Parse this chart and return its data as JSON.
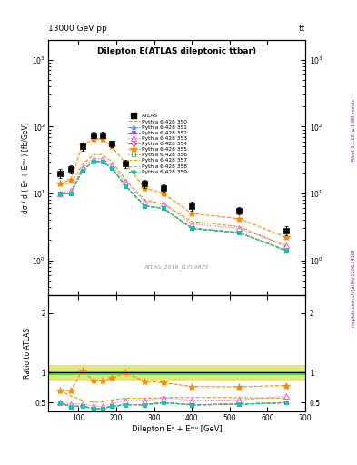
{
  "title_top": "13000 GeV pp",
  "title_top_right": "tt̅",
  "plot_title": "Dilepton E(ATLAS dileptonic ttbar)",
  "right_label": "mcplots.cern.ch [arXiv:1306.3436]",
  "rivet_label": "Rivet 3.1.10, ≥ 1.9M events",
  "watermark": "ATLAS_2019_I1759875",
  "xlabel": "Dilepton Eᵉ + Eᵐᵘ [GeV]",
  "ylabel": "dσ / d ( Eᵉ + Eᵐᵘ ) [fb/GeV]",
  "ylabel_ratio": "Ratio to ATLAS",
  "x_centers": [
    50,
    80,
    110,
    140,
    163,
    188,
    225,
    275,
    325,
    400,
    525,
    650
  ],
  "atlas_data": [
    20,
    23,
    50,
    75,
    75,
    55,
    28,
    14,
    12,
    6.5,
    5.5,
    2.8
  ],
  "atlas_errors": [
    3,
    3,
    6,
    8,
    8,
    6,
    4,
    2,
    1.5,
    1.0,
    0.7,
    0.4
  ],
  "series": [
    {
      "label": "Pythia 6.428 350",
      "color": "#ccaa00",
      "linestyle": "--",
      "marker": null,
      "markersize": 0,
      "values": [
        14,
        14,
        27,
        38,
        38,
        30,
        16,
        8,
        7,
        3.8,
        3.2,
        1.6
      ]
    },
    {
      "label": "Pythia 6.428 351",
      "color": "#4488ff",
      "linestyle": "--",
      "marker": "^",
      "markersize": 3,
      "markerfacecolor": "#4488ff",
      "values": [
        10,
        10,
        22,
        30,
        30,
        24,
        13,
        6.5,
        6,
        3.0,
        2.6,
        1.4
      ]
    },
    {
      "label": "Pythia 6.428 352",
      "color": "#8844cc",
      "linestyle": "--",
      "marker": "v",
      "markersize": 3,
      "markerfacecolor": "#8844cc",
      "values": [
        10,
        10,
        22,
        30,
        30,
        24,
        13,
        6.5,
        6,
        3.0,
        2.6,
        1.4
      ]
    },
    {
      "label": "Pythia 6.428 353",
      "color": "#ee44ee",
      "linestyle": ":",
      "marker": "^",
      "markersize": 4,
      "markerfacecolor": "none",
      "values": [
        10,
        11,
        24,
        33,
        33,
        26,
        15,
        7.5,
        7,
        3.5,
        3.0,
        1.7
      ]
    },
    {
      "label": "Pythia 6.428 354",
      "color": "#ee4444",
      "linestyle": "--",
      "marker": "o",
      "markersize": 3,
      "markerfacecolor": "none",
      "values": [
        10,
        10,
        22,
        30,
        30,
        24,
        13,
        6.5,
        6,
        3.0,
        2.6,
        1.4
      ]
    },
    {
      "label": "Pythia 6.428 355",
      "color": "#ff8800",
      "linestyle": "--",
      "marker": "*",
      "markersize": 6,
      "markerfacecolor": "#ff8800",
      "values": [
        14,
        16,
        52,
        65,
        65,
        50,
        28,
        12,
        10,
        5.0,
        4.2,
        2.2
      ]
    },
    {
      "label": "Pythia 6.428 356",
      "color": "#44aa44",
      "linestyle": ":",
      "marker": "s",
      "markersize": 3,
      "markerfacecolor": "none",
      "values": [
        10,
        10,
        22,
        30,
        30,
        24,
        13,
        6.5,
        6,
        3.0,
        2.6,
        1.4
      ]
    },
    {
      "label": "Pythia 6.428 357",
      "color": "#ddbb00",
      "linestyle": "--",
      "marker": null,
      "markersize": 0,
      "values": [
        10,
        10,
        22,
        30,
        30,
        24,
        13,
        6.5,
        6,
        3.0,
        2.6,
        1.4
      ]
    },
    {
      "label": "Pythia 6.428 358",
      "color": "#aacc00",
      "linestyle": "--",
      "marker": null,
      "markersize": 0,
      "values": [
        10,
        10,
        22,
        30,
        30,
        24,
        13,
        6.5,
        6,
        3.0,
        2.6,
        1.4
      ]
    },
    {
      "label": "Pythia 6.428 359",
      "color": "#00ccbb",
      "linestyle": "--",
      "marker": "o",
      "markersize": 3,
      "markerfacecolor": "#00ccbb",
      "values": [
        10,
        10,
        22,
        30,
        30,
        24,
        13,
        6.5,
        6,
        3.0,
        2.6,
        1.4
      ]
    }
  ],
  "ratio_band_green": {
    "ymin": 0.96,
    "ymax": 1.04,
    "color": "#00cc00",
    "alpha": 0.6
  },
  "ratio_band_yellow": {
    "ymin": 0.87,
    "ymax": 1.13,
    "color": "#cccc00",
    "alpha": 0.5
  },
  "ylim_main": [
    0.3,
    2000
  ],
  "ylim_ratio": [
    0.35,
    2.3
  ],
  "xlim": [
    20,
    700
  ]
}
